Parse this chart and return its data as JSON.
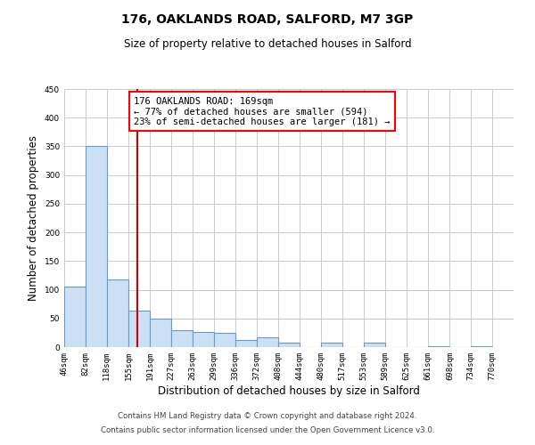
{
  "title": "176, OAKLANDS ROAD, SALFORD, M7 3GP",
  "subtitle": "Size of property relative to detached houses in Salford",
  "xlabel": "Distribution of detached houses by size in Salford",
  "ylabel": "Number of detached properties",
  "bar_left_edges": [
    46,
    82,
    118,
    155,
    191,
    227,
    263,
    299,
    336,
    372,
    408,
    444,
    480,
    517,
    553,
    589,
    625,
    661,
    698,
    734
  ],
  "bar_heights": [
    105,
    350,
    118,
    63,
    50,
    30,
    26,
    25,
    13,
    17,
    7,
    0,
    8,
    0,
    8,
    0,
    0,
    2,
    0,
    2
  ],
  "bin_width": 36,
  "tick_labels": [
    "46sqm",
    "82sqm",
    "118sqm",
    "155sqm",
    "191sqm",
    "227sqm",
    "263sqm",
    "299sqm",
    "336sqm",
    "372sqm",
    "408sqm",
    "444sqm",
    "480sqm",
    "517sqm",
    "553sqm",
    "589sqm",
    "625sqm",
    "661sqm",
    "698sqm",
    "734sqm",
    "770sqm"
  ],
  "bar_color": "#cce0f5",
  "bar_edge_color": "#6699cc",
  "vline_x": 169,
  "vline_color": "#cc0000",
  "ylim": [
    0,
    450
  ],
  "yticks": [
    0,
    50,
    100,
    150,
    200,
    250,
    300,
    350,
    400,
    450
  ],
  "annotation_title": "176 OAKLANDS ROAD: 169sqm",
  "annotation_line1": "← 77% of detached houses are smaller (594)",
  "annotation_line2": "23% of semi-detached houses are larger (181) →",
  "footer1": "Contains HM Land Registry data © Crown copyright and database right 2024.",
  "footer2": "Contains public sector information licensed under the Open Government Licence v3.0.",
  "bg_color": "#ffffff",
  "grid_color": "#cccccc"
}
